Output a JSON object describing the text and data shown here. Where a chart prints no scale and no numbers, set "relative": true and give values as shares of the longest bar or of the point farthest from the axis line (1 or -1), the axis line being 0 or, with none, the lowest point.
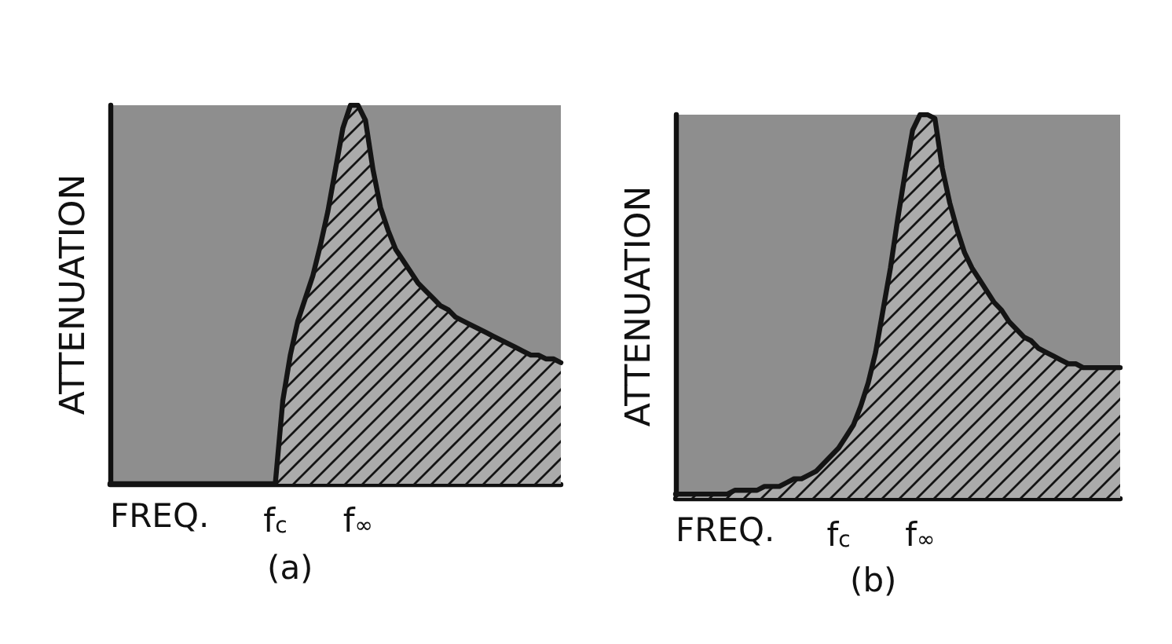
{
  "chart_data": [
    {
      "type": "area",
      "title": "(a)",
      "xlabel": "FREQ.",
      "ylabel": "ATTENUATION",
      "relative": true,
      "color": "#141414",
      "categories": [
        null,
        null,
        null,
        null,
        null,
        null,
        null,
        null,
        null,
        null,
        null,
        null,
        null,
        null,
        null,
        null,
        null,
        null,
        null,
        null,
        null,
        null,
        "f$_{c}$",
        null,
        null,
        null,
        null,
        null,
        null,
        null,
        null,
        null,
        null,
        "f$_{∞}$",
        null,
        null,
        null,
        null,
        null,
        null,
        null,
        null,
        null,
        null,
        null,
        null,
        null,
        null,
        null,
        null,
        null,
        null,
        null,
        null,
        null,
        null,
        null,
        null,
        null,
        null,
        null
      ],
      "values": [
        0,
        0,
        0,
        0,
        0,
        0,
        0,
        0,
        0,
        0,
        0,
        0,
        0,
        0,
        0,
        0,
        0,
        0,
        0,
        0,
        0,
        0,
        0,
        0.22,
        0.34,
        0.43,
        0.49,
        0.55,
        0.63,
        0.72,
        0.83,
        0.94,
        1,
        1,
        0.96,
        0.83,
        0.73,
        0.67,
        0.62,
        0.59,
        0.56,
        0.53,
        0.51,
        0.49,
        0.47,
        0.46,
        0.44,
        0.43,
        0.42,
        0.41,
        0.4,
        0.39,
        0.38,
        0.37,
        0.36,
        0.35,
        0.34,
        0.34,
        0.33,
        0.33,
        0.32
      ]
    },
    {
      "type": "area",
      "title": "(b)",
      "xlabel": "FREQ.",
      "ylabel": "ATTENUATION",
      "relative": true,
      "color": "#141414",
      "categories": [
        null,
        null,
        null,
        null,
        null,
        null,
        null,
        null,
        null,
        null,
        null,
        null,
        null,
        null,
        null,
        null,
        null,
        null,
        null,
        null,
        null,
        null,
        "f$_{c}$",
        null,
        null,
        null,
        null,
        null,
        null,
        null,
        null,
        null,
        null,
        "f$_{∞}$",
        null,
        null,
        null,
        null,
        null,
        null,
        null,
        null,
        null,
        null,
        null,
        null,
        null,
        null,
        null,
        null,
        null,
        null,
        null,
        null,
        null,
        null,
        null,
        null,
        null,
        null,
        null
      ],
      "values": [
        0.01,
        0.01,
        0.01,
        0.01,
        0.01,
        0.01,
        0.01,
        0.01,
        0.02,
        0.02,
        0.02,
        0.02,
        0.03,
        0.03,
        0.03,
        0.04,
        0.05,
        0.05,
        0.06,
        0.07,
        0.09,
        0.11,
        0.13,
        0.16,
        0.19,
        0.24,
        0.3,
        0.38,
        0.49,
        0.6,
        0.73,
        0.85,
        0.96,
        1,
        1,
        0.99,
        0.86,
        0.77,
        0.7,
        0.64,
        0.6,
        0.57,
        0.54,
        0.51,
        0.49,
        0.46,
        0.44,
        0.42,
        0.41,
        0.39,
        0.38,
        0.37,
        0.36,
        0.35,
        0.35,
        0.34,
        0.34,
        0.34,
        0.34,
        0.34,
        0.34
      ]
    }
  ]
}
